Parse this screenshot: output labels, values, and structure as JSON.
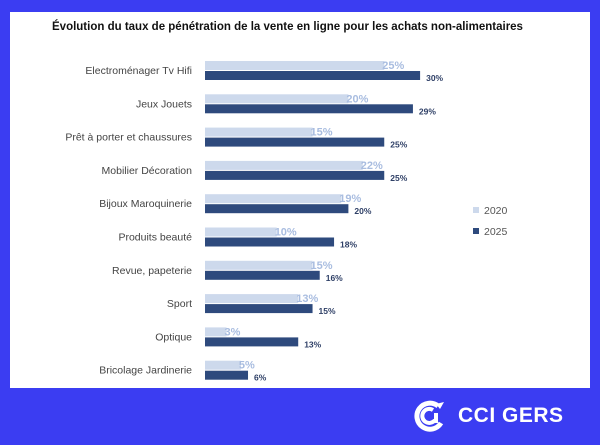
{
  "chart_data": {
    "type": "bar",
    "orientation": "horizontal",
    "title": "Évolution du taux de pénétration de la vente en ligne pour les achats non-alimentaires",
    "categories": [
      "Electroménager Tv Hifi",
      "Jeux Jouets",
      "Prêt à porter et chaussures",
      "Mobilier Décoration",
      "Bijoux Maroquinerie",
      "Produits beauté",
      "Revue, papeterie",
      "Sport",
      "Optique",
      "Bricolage Jardinerie"
    ],
    "series": [
      {
        "name": "2020",
        "color": "#cdd9ec",
        "label_color": "#a9bde0",
        "values": [
          25,
          20,
          15,
          22,
          19,
          10,
          15,
          13,
          3,
          5
        ]
      },
      {
        "name": "2025",
        "color": "#2e4a7d",
        "label_color": "#2e3f66",
        "values": [
          30,
          29,
          25,
          25,
          20,
          18,
          16,
          15,
          13,
          6
        ]
      }
    ],
    "value_suffix": "%",
    "xlim": [
      0,
      32
    ],
    "grid": false,
    "legend": "right"
  },
  "logo": {
    "text": "CCI GERS"
  }
}
